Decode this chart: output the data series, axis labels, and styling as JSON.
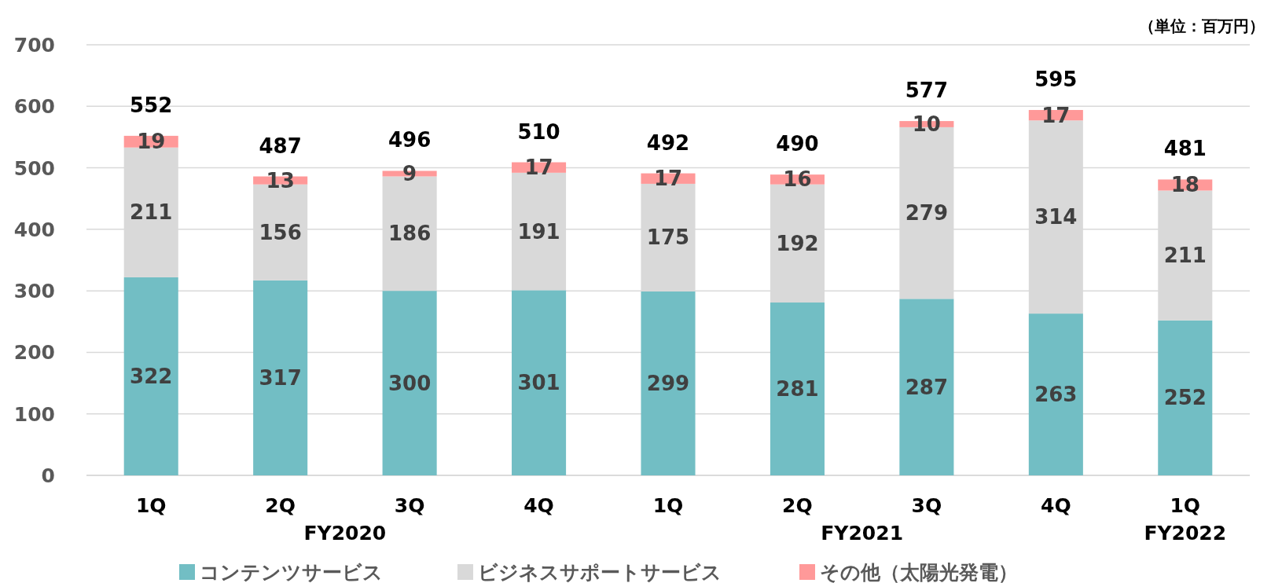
{
  "chart_data": {
    "type": "bar",
    "stacked": true,
    "categories": [
      "1Q",
      "2Q",
      "3Q",
      "4Q",
      "1Q",
      "2Q",
      "3Q",
      "4Q",
      "1Q"
    ],
    "series": [
      {
        "name": "コンテンツサービス",
        "color": "#72bec4",
        "values": [
          322,
          317,
          300,
          301,
          299,
          281,
          287,
          263,
          252
        ]
      },
      {
        "name": "ビジネスサポートサービス",
        "color": "#d9d9d9",
        "values": [
          211,
          156,
          186,
          191,
          175,
          192,
          279,
          314,
          211
        ]
      },
      {
        "name": "その他（太陽光発電）",
        "color": "#ff9999",
        "values": [
          19,
          13,
          9,
          17,
          17,
          16,
          10,
          17,
          18
        ]
      }
    ],
    "totals": [
      "552",
      "487",
      "496",
      "510",
      "492",
      "490",
      "577",
      "595",
      "481"
    ],
    "data_labels": true,
    "ylim": [
      0,
      700
    ],
    "yticks": [
      0,
      100,
      200,
      300,
      400,
      500,
      600,
      700
    ],
    "grid": "y",
    "legend": "bottom",
    "annotations": [
      "（単位：百万円）",
      "FY2020",
      "FY2021",
      "FY2022"
    ]
  }
}
